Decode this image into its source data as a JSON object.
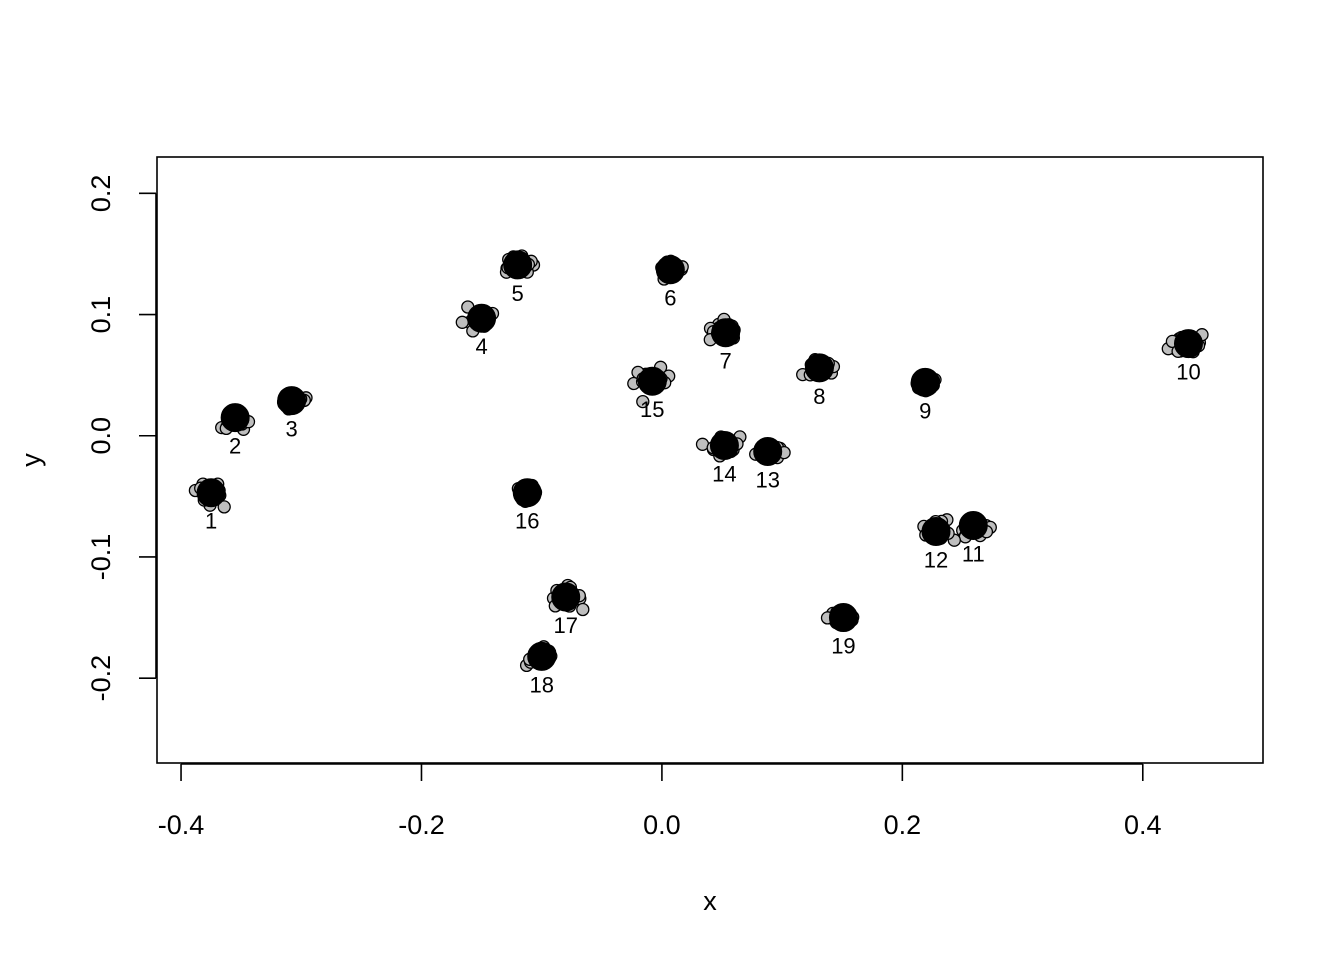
{
  "chart_data": {
    "type": "scatter",
    "title": "",
    "xlabel": "x",
    "ylabel": "y",
    "xlim": [
      -0.42,
      0.5
    ],
    "ylim": [
      -0.27,
      0.23
    ],
    "x_ticks": [
      "-0.4",
      "-0.2",
      "0.0",
      "0.2",
      "0.4"
    ],
    "y_ticks": [
      "-0.2",
      "-0.1",
      "0.0",
      "0.1",
      "0.2"
    ],
    "x_tick_values": [
      -0.4,
      -0.2,
      0.0,
      0.2,
      0.4
    ],
    "y_tick_values": [
      -0.2,
      -0.1,
      0.0,
      0.1,
      0.2
    ],
    "grid": false,
    "legend": "none",
    "colors": {
      "replicate_fill": "#bebebe",
      "mean_fill": "#000000",
      "outline": "#000000"
    },
    "clusters": [
      {
        "label": "1",
        "x": -0.375,
        "y": -0.047,
        "spread": 0.01
      },
      {
        "label": "2",
        "x": -0.355,
        "y": 0.015,
        "spread": 0.008
      },
      {
        "label": "3",
        "x": -0.308,
        "y": 0.029,
        "spread": 0.008
      },
      {
        "label": "4",
        "x": -0.15,
        "y": 0.097,
        "spread": 0.009
      },
      {
        "label": "5",
        "x": -0.12,
        "y": 0.141,
        "spread": 0.009
      },
      {
        "label": "6",
        "x": 0.007,
        "y": 0.137,
        "spread": 0.008
      },
      {
        "label": "7",
        "x": 0.053,
        "y": 0.085,
        "spread": 0.009
      },
      {
        "label": "8",
        "x": 0.131,
        "y": 0.056,
        "spread": 0.01
      },
      {
        "label": "9",
        "x": 0.219,
        "y": 0.044,
        "spread": 0.009
      },
      {
        "label": "10",
        "x": 0.438,
        "y": 0.076,
        "spread": 0.011
      },
      {
        "label": "11",
        "x": 0.259,
        "y": -0.074,
        "spread": 0.009
      },
      {
        "label": "12",
        "x": 0.228,
        "y": -0.079,
        "spread": 0.008
      },
      {
        "label": "13",
        "x": 0.088,
        "y": -0.013,
        "spread": 0.007
      },
      {
        "label": "14",
        "x": 0.052,
        "y": -0.008,
        "spread": 0.009
      },
      {
        "label": "15",
        "x": -0.008,
        "y": 0.045,
        "spread": 0.011
      },
      {
        "label": "16",
        "x": -0.112,
        "y": -0.047,
        "spread": 0.006
      },
      {
        "label": "17",
        "x": -0.08,
        "y": -0.133,
        "spread": 0.009
      },
      {
        "label": "18",
        "x": -0.1,
        "y": -0.182,
        "spread": 0.009
      },
      {
        "label": "19",
        "x": 0.151,
        "y": -0.15,
        "spread": 0.009
      }
    ]
  }
}
